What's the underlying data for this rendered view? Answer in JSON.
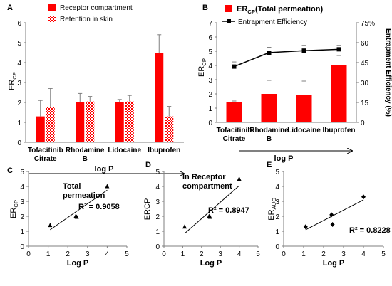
{
  "chart_data": [
    {
      "panel": "A",
      "type": "bar",
      "categories": [
        "Tofacitinib Citrate",
        "Rhodamine B",
        "Lidocaine",
        "Ibuprofen"
      ],
      "ylabel": "ER",
      "ylabel_sub": "CP",
      "xlabel": "log P",
      "ylim": [
        0,
        6
      ],
      "yticks": [
        0,
        1,
        2,
        3,
        4,
        5,
        6
      ],
      "legend_position": "top-left",
      "series": [
        {
          "name": "Receptor compartment",
          "pattern": "solid",
          "color": "#ff0000",
          "values": [
            1.3,
            2.0,
            2.0,
            4.5
          ],
          "errors": [
            0.8,
            0.45,
            0.15,
            0.9
          ]
        },
        {
          "name": "Retention in skin",
          "pattern": "checker",
          "color": "#ff0000",
          "values": [
            1.75,
            2.05,
            2.05,
            1.3
          ],
          "errors": [
            0.95,
            0.25,
            0.3,
            0.5
          ]
        }
      ]
    },
    {
      "panel": "B",
      "type": "bar+line",
      "categories": [
        "Tofacitinib Citrate",
        "Rhodamine B",
        "Lidocaine",
        "Ibuprofen"
      ],
      "ylabel": "ER",
      "ylabel_sub": "CP",
      "y2label": "Entrapment Efficiency (%)",
      "xlabel": "log P",
      "ylim": [
        0,
        7
      ],
      "yticks": [
        0,
        1,
        2,
        3,
        4,
        5,
        6,
        7
      ],
      "y2lim": [
        0,
        75
      ],
      "y2ticks": [
        "0",
        "15",
        "30",
        "45",
        "60",
        "75%"
      ],
      "legend_position": "top-left",
      "bars": {
        "name_main": "ER",
        "name_sub": "CP",
        "name_rest": "(Total permeation)",
        "color": "#ff0000",
        "values": [
          1.4,
          2.0,
          1.95,
          4.0
        ],
        "errors": [
          0.1,
          0.95,
          0.95,
          0.7
        ]
      },
      "line": {
        "name": "Entrapment Efficiency",
        "color": "#000000",
        "values": [
          42,
          52.5,
          54,
          55
        ],
        "errors": [
          3.5,
          4,
          4,
          3
        ]
      }
    },
    {
      "panel": "C",
      "type": "scatter",
      "annotation_lines": [
        "Total",
        "permeation"
      ],
      "xlabel": "Log P",
      "ylabel": "ER",
      "ylabel_sub": "CP",
      "xlim": [
        0,
        5
      ],
      "ylim": [
        0,
        5
      ],
      "xticks": [
        0,
        1,
        2,
        3,
        4,
        5
      ],
      "yticks": [
        0,
        1,
        2,
        3,
        4,
        5
      ],
      "marker": "triangle",
      "points": [
        {
          "x": 1.1,
          "y": 1.4
        },
        {
          "x": 2.4,
          "y": 2.0
        },
        {
          "x": 2.45,
          "y": 1.95
        },
        {
          "x": 4.0,
          "y": 4.0
        }
      ],
      "trendline": {
        "x": [
          1.1,
          4.0
        ],
        "y": [
          1.1,
          3.75
        ]
      },
      "r2": "R² = 0.9058"
    },
    {
      "panel": "D",
      "type": "scatter",
      "annotation_lines": [
        "In Receptor",
        "compartment"
      ],
      "xlabel": "Log P",
      "ylabel": "ERCP",
      "ylabel_sub": "",
      "xlim": [
        0,
        5
      ],
      "ylim": [
        0,
        5
      ],
      "xticks": [
        0,
        1,
        2,
        3,
        4,
        5
      ],
      "yticks": [
        0,
        1,
        2,
        3,
        4,
        5
      ],
      "marker": "triangle",
      "points": [
        {
          "x": 1.1,
          "y": 1.3
        },
        {
          "x": 2.4,
          "y": 2.0
        },
        {
          "x": 2.45,
          "y": 1.95
        },
        {
          "x": 4.0,
          "y": 4.5
        }
      ],
      "trendline": {
        "x": [
          1.1,
          4.0
        ],
        "y": [
          0.85,
          4.05
        ]
      },
      "r2": "R² = 0.8947"
    },
    {
      "panel": "E",
      "type": "scatter",
      "annotation_lines": [],
      "xlabel": "Log P",
      "ylabel": "ER",
      "ylabel_sub": "AUC",
      "xlim": [
        0,
        5
      ],
      "ylim": [
        0,
        5
      ],
      "xticks": [
        0,
        1,
        2,
        3,
        4,
        5
      ],
      "yticks": [
        0,
        1,
        2,
        3,
        4,
        5
      ],
      "marker": "diamond",
      "points": [
        {
          "x": 1.1,
          "y": 1.3
        },
        {
          "x": 2.4,
          "y": 2.1
        },
        {
          "x": 2.45,
          "y": 1.45
        },
        {
          "x": 4.0,
          "y": 3.3
        }
      ],
      "trendline": {
        "x": [
          1.1,
          4.0
        ],
        "y": [
          1.1,
          3.1
        ]
      },
      "r2": "R² = 0.8228"
    }
  ]
}
